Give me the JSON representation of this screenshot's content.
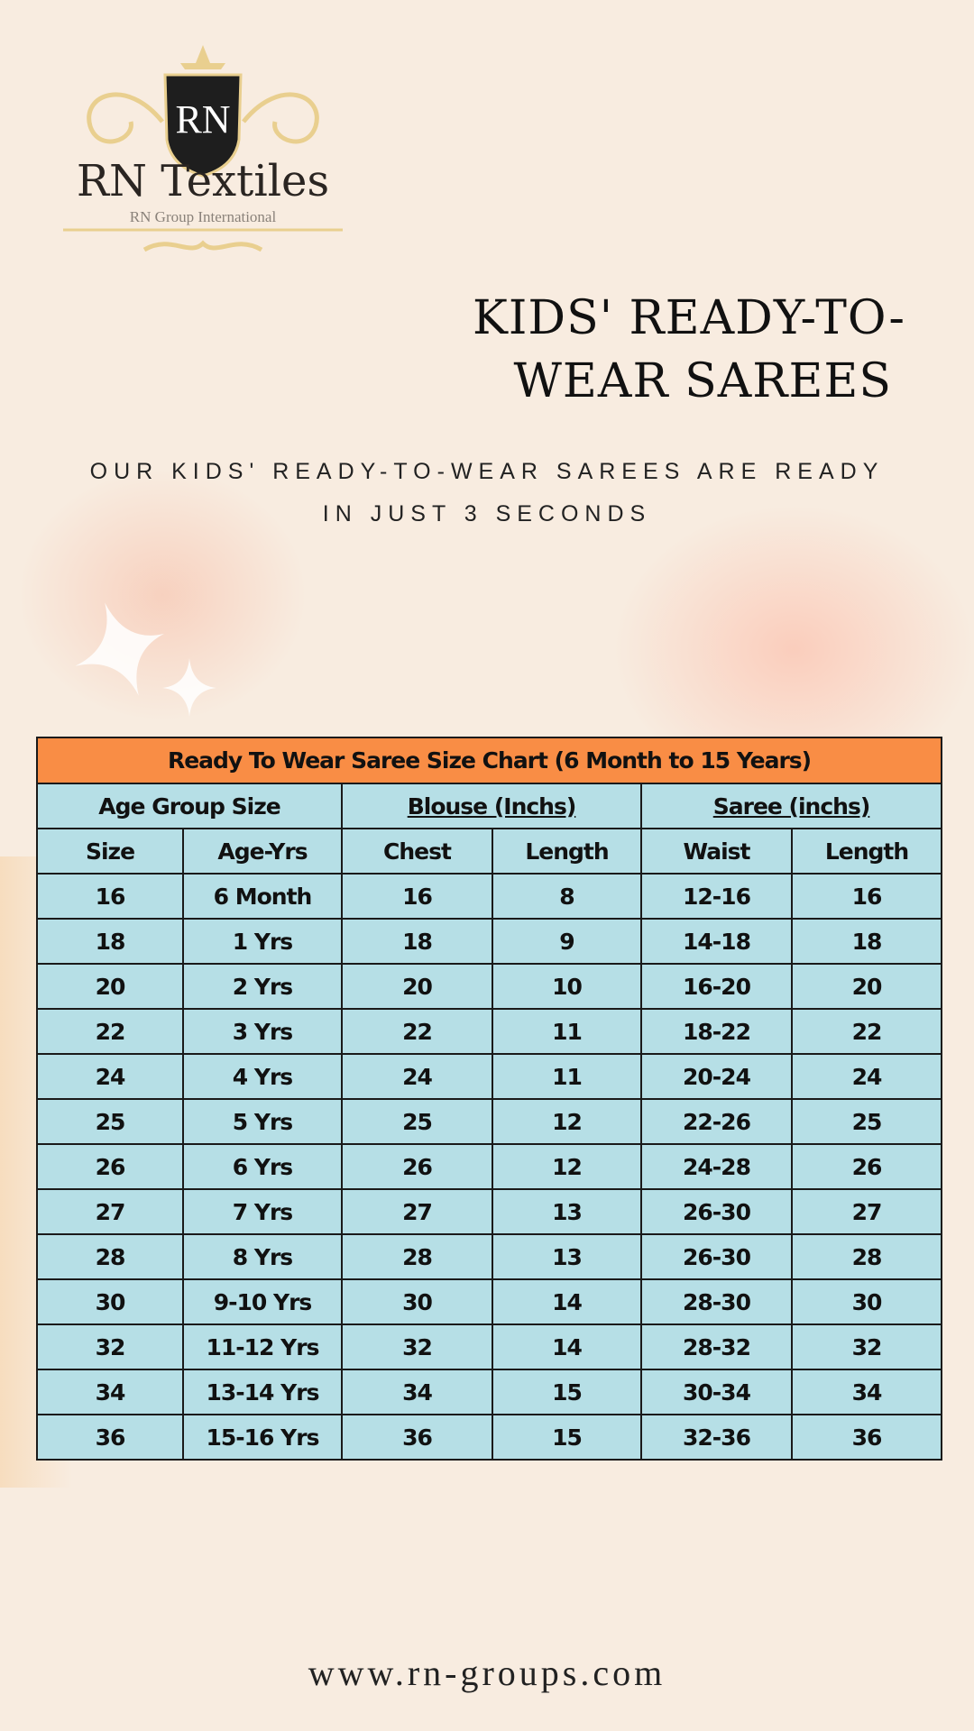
{
  "logo": {
    "monogram": "RN",
    "brand": "RN Textiles",
    "tagline": "RN Group International"
  },
  "title_lines": [
    "KIDS' READY-TO-",
    "WEAR SAREES"
  ],
  "subtitle_lines": [
    "OUR KIDS' READY-TO-WEAR SAREES ARE READY",
    "IN JUST 3 SECONDS"
  ],
  "table": {
    "title": "Ready To Wear Saree Size Chart  (6 Month to 15 Years)",
    "groups": [
      "Age Group Size",
      "Blouse (Inchs)",
      "Saree (inchs)"
    ],
    "columns": [
      "Size",
      "Age-Yrs",
      "Chest",
      "Length",
      "Waist",
      "Length"
    ],
    "rows": [
      [
        "16",
        "6 Month",
        "16",
        "8",
        "12-16",
        "16"
      ],
      [
        "18",
        "1 Yrs",
        "18",
        "9",
        "14-18",
        "18"
      ],
      [
        "20",
        "2 Yrs",
        "20",
        "10",
        "16-20",
        "20"
      ],
      [
        "22",
        "3 Yrs",
        "22",
        "11",
        "18-22",
        "22"
      ],
      [
        "24",
        "4 Yrs",
        "24",
        "11",
        "20-24",
        "24"
      ],
      [
        "25",
        "5 Yrs",
        "25",
        "12",
        "22-26",
        "25"
      ],
      [
        "26",
        "6 Yrs",
        "26",
        "12",
        "24-28",
        "26"
      ],
      [
        "27",
        "7 Yrs",
        "27",
        "13",
        "26-30",
        "27"
      ],
      [
        "28",
        "8 Yrs",
        "28",
        "13",
        "26-30",
        "28"
      ],
      [
        "30",
        "9-10 Yrs",
        "30",
        "14",
        "28-30",
        "30"
      ],
      [
        "32",
        "11-12 Yrs",
        "32",
        "14",
        "28-32",
        "32"
      ],
      [
        "34",
        "13-14 Yrs",
        "34",
        "15",
        "30-34",
        "34"
      ],
      [
        "36",
        "15-16 Yrs",
        "36",
        "15",
        "32-36",
        "36"
      ]
    ]
  },
  "website": "www.rn-groups.com",
  "colors": {
    "background": "#f8ece0",
    "header": "#f98d45",
    "cells": "#b6dfe6",
    "gold": "#e9cf8f"
  }
}
